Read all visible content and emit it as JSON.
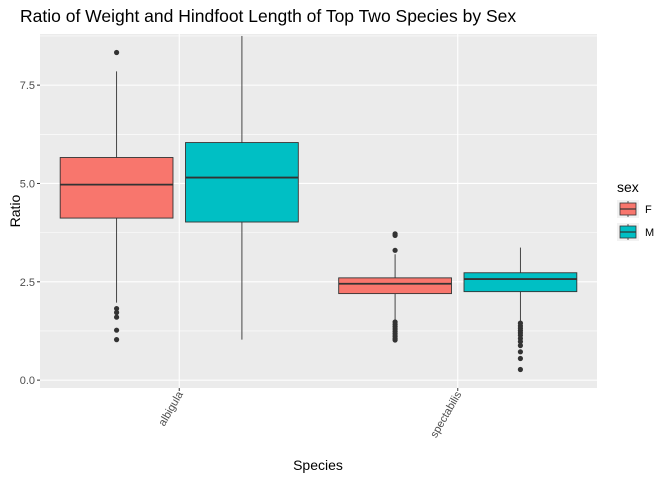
{
  "chart_data": {
    "type": "boxplot",
    "title": "Ratio of Weight and Hindfoot Length of Top Two Species by Sex",
    "xlabel": "Species",
    "ylabel": "Ratio",
    "categories": [
      "albigula",
      "spectabilis"
    ],
    "ylim": [
      -0.2,
      8.8
    ],
    "yticks": [
      0.0,
      2.5,
      5.0,
      7.5
    ],
    "ytick_labels": [
      "0.0",
      "2.5",
      "5.0",
      "7.5"
    ],
    "grid": true,
    "legend": {
      "title": "sex",
      "position": "right",
      "entries": [
        {
          "label": "F",
          "color": "#F8766D"
        },
        {
          "label": "M",
          "color": "#00BFC4"
        }
      ]
    },
    "series": [
      {
        "name": "F",
        "color": "#F8766D",
        "boxes": [
          {
            "category": "albigula",
            "whisker_low": 1.97,
            "q1": 4.12,
            "median": 4.97,
            "q3": 5.66,
            "whisker_high": 7.85,
            "outliers": [
              8.33,
              1.82,
              1.72,
              1.6,
              1.27,
              1.03
            ]
          },
          {
            "category": "spectabilis",
            "whisker_low": 1.5,
            "q1": 2.2,
            "median": 2.45,
            "q3": 2.6,
            "whisker_high": 3.2,
            "outliers": [
              3.72,
              3.68,
              3.3,
              1.48,
              1.42,
              1.36,
              1.3,
              1.24,
              1.18,
              1.12,
              1.06,
              1.02
            ]
          }
        ]
      },
      {
        "name": "M",
        "color": "#00BFC4",
        "boxes": [
          {
            "category": "albigula",
            "whisker_low": 1.03,
            "q1": 4.02,
            "median": 5.15,
            "q3": 6.04,
            "whisker_high": 8.75,
            "outliers": []
          },
          {
            "category": "spectabilis",
            "whisker_low": 1.5,
            "q1": 2.25,
            "median": 2.57,
            "q3": 2.73,
            "whisker_high": 3.37,
            "outliers": [
              1.45,
              1.38,
              1.32,
              1.26,
              1.2,
              1.14,
              1.06,
              0.98,
              0.88,
              0.72,
              0.55,
              0.27
            ]
          }
        ]
      }
    ]
  }
}
